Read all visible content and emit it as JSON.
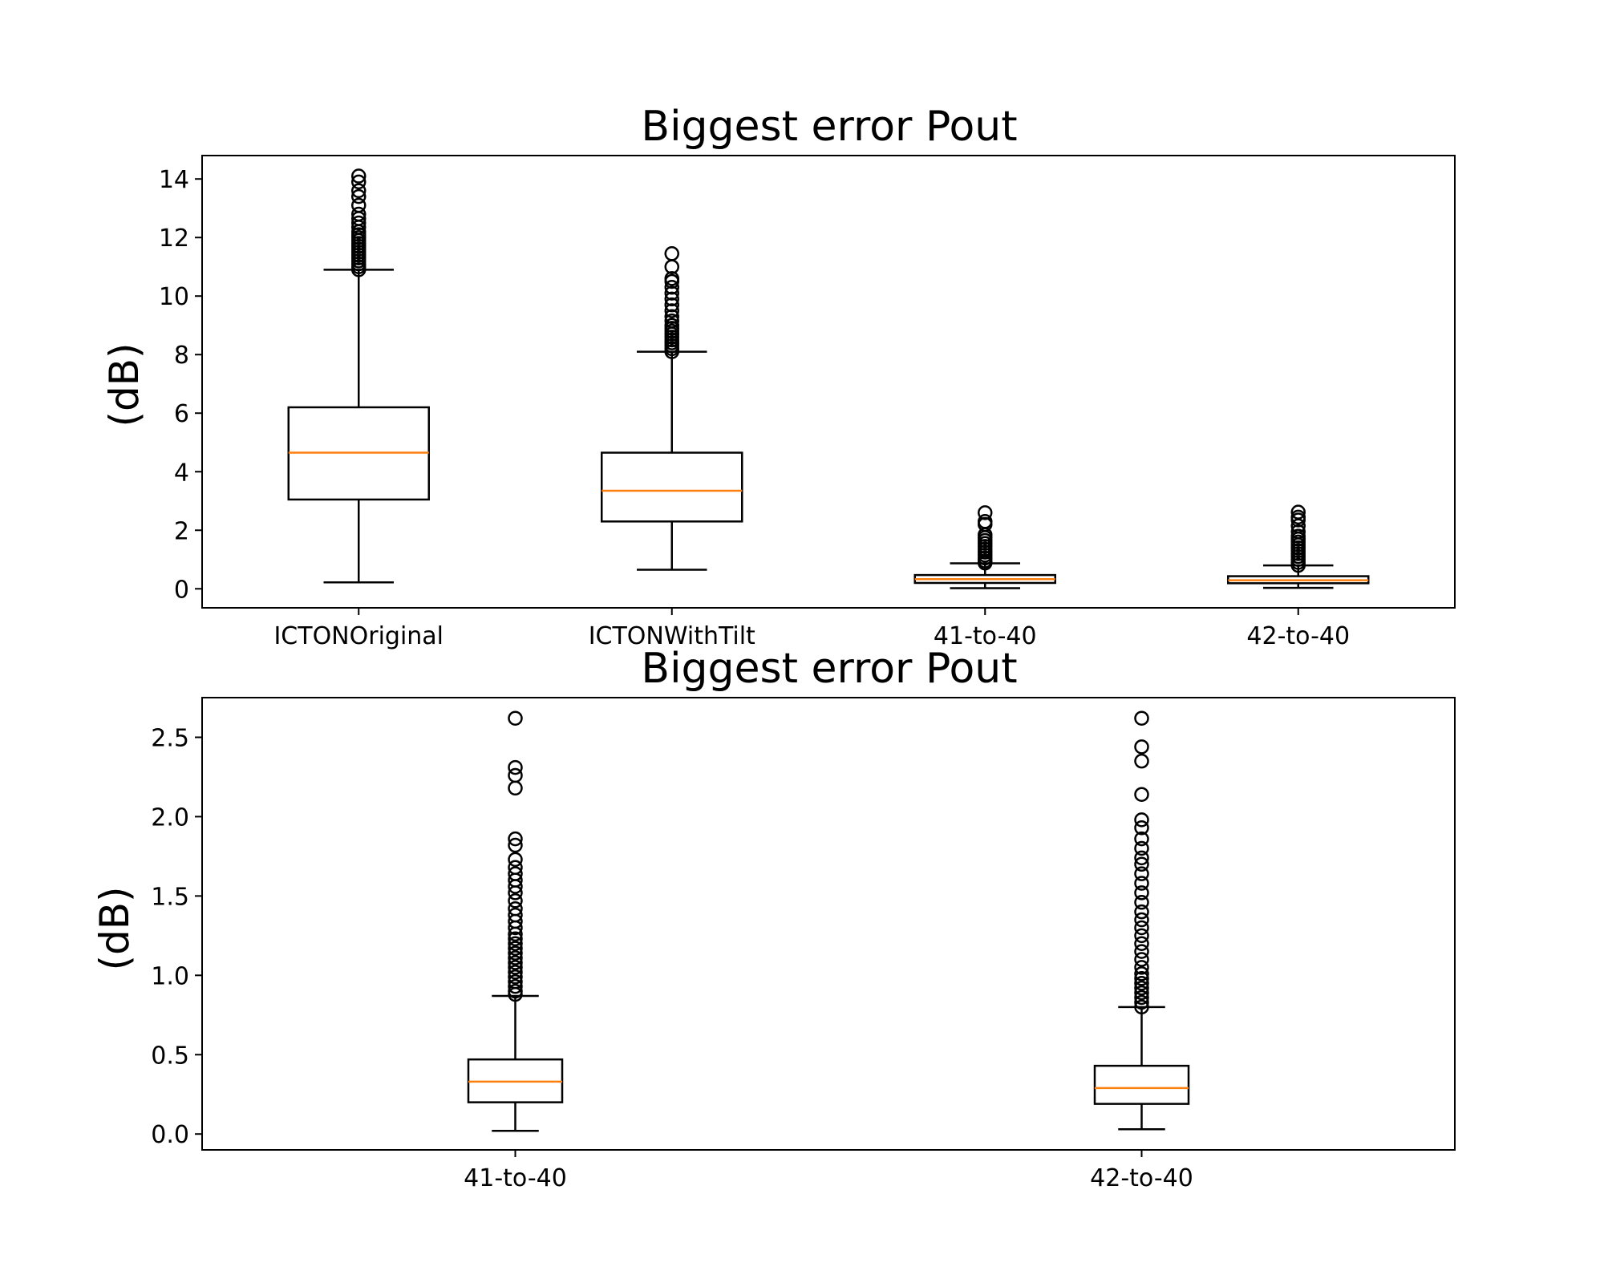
{
  "chart_data": [
    {
      "type": "box",
      "title": "Biggest error Pout",
      "xlabel": "",
      "ylabel": "(dB)",
      "ylim": [
        -0.65,
        14.8
      ],
      "yticks": [
        0,
        2,
        4,
        6,
        8,
        10,
        12,
        14
      ],
      "ytick_labels": [
        "0",
        "2",
        "4",
        "6",
        "8",
        "10",
        "12",
        "14"
      ],
      "grid": false,
      "categories": [
        "ICTONOriginal",
        "ICTONWithTilt",
        "41-to-40",
        "42-to-40"
      ],
      "boxes": [
        {
          "whisker_low": 0.22,
          "q1": 3.05,
          "median": 4.65,
          "q3": 6.2,
          "whisker_high": 10.9,
          "fliers": [
            10.9,
            11.0,
            11.1,
            11.2,
            11.3,
            11.4,
            11.5,
            11.6,
            11.7,
            11.8,
            11.9,
            12.0,
            12.1,
            12.2,
            12.35,
            12.5,
            12.65,
            12.8,
            13.1,
            13.4,
            13.6,
            13.9,
            14.1
          ]
        },
        {
          "whisker_low": 0.65,
          "q1": 2.3,
          "median": 3.35,
          "q3": 4.65,
          "whisker_high": 8.1,
          "fliers": [
            8.1,
            8.2,
            8.3,
            8.4,
            8.5,
            8.6,
            8.7,
            8.8,
            8.9,
            9.0,
            9.15,
            9.3,
            9.5,
            9.7,
            9.9,
            10.1,
            10.3,
            10.5,
            10.6,
            11.0,
            11.45
          ]
        },
        {
          "whisker_low": 0.02,
          "q1": 0.2,
          "median": 0.33,
          "q3": 0.47,
          "whisker_high": 0.87,
          "fliers": [
            0.88,
            0.95,
            1.05,
            1.15,
            1.25,
            1.35,
            1.45,
            1.55,
            1.65,
            1.75,
            1.85,
            2.2,
            2.3,
            2.6
          ]
        },
        {
          "whisker_low": 0.03,
          "q1": 0.19,
          "median": 0.29,
          "q3": 0.43,
          "whisker_high": 0.8,
          "fliers": [
            0.8,
            0.9,
            1.0,
            1.1,
            1.2,
            1.3,
            1.4,
            1.5,
            1.6,
            1.7,
            1.8,
            1.95,
            2.15,
            2.35,
            2.45,
            2.62
          ]
        }
      ]
    },
    {
      "type": "box",
      "title": "Biggest error Pout",
      "xlabel": "",
      "ylabel": "(dB)",
      "ylim": [
        -0.1,
        2.75
      ],
      "yticks": [
        0,
        0.5,
        1,
        1.5,
        2,
        2.5
      ],
      "ytick_labels": [
        "0.0",
        "0.5",
        "1.0",
        "1.5",
        "2.0",
        "2.5"
      ],
      "grid": false,
      "categories": [
        "41-to-40",
        "42-to-40"
      ],
      "boxes": [
        {
          "whisker_low": 0.02,
          "q1": 0.2,
          "median": 0.33,
          "q3": 0.47,
          "whisker_high": 0.87,
          "fliers": [
            0.88,
            0.9,
            0.93,
            0.96,
            0.99,
            1.02,
            1.05,
            1.08,
            1.11,
            1.14,
            1.17,
            1.2,
            1.23,
            1.26,
            1.3,
            1.34,
            1.38,
            1.42,
            1.47,
            1.52,
            1.56,
            1.6,
            1.64,
            1.68,
            1.73,
            1.82,
            1.86,
            2.18,
            2.26,
            2.31,
            2.62
          ]
        },
        {
          "whisker_low": 0.03,
          "q1": 0.19,
          "median": 0.29,
          "q3": 0.43,
          "whisker_high": 0.8,
          "fliers": [
            0.8,
            0.83,
            0.86,
            0.89,
            0.92,
            0.95,
            0.98,
            1.01,
            1.05,
            1.1,
            1.15,
            1.2,
            1.25,
            1.3,
            1.35,
            1.4,
            1.46,
            1.52,
            1.58,
            1.64,
            1.7,
            1.74,
            1.8,
            1.86,
            1.93,
            1.98,
            2.14,
            2.35,
            2.44,
            2.62
          ]
        }
      ]
    }
  ]
}
